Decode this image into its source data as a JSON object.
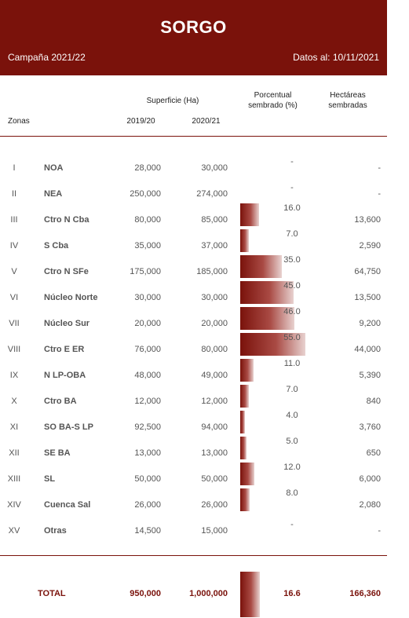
{
  "header": {
    "title": "SORGO",
    "campaign": "Campaña 2021/22",
    "date": "Datos al: 10/11/2021"
  },
  "columns": {
    "superficie": "Superficie (Ha)",
    "zonas": "Zonas",
    "y1": "2019/20",
    "y2": "2020/21",
    "pct_line1": "Porcentual",
    "pct_line2": "sembrado (%)",
    "ha_line1": "Hectáreas",
    "ha_line2": "sembradas"
  },
  "chart_data": {
    "type": "table",
    "rows": [
      {
        "roman": "I",
        "zone": "NOA",
        "y1": "28,000",
        "y2": "30,000",
        "pct": null,
        "pct_label": "-",
        "ha": "-"
      },
      {
        "roman": "II",
        "zone": "NEA",
        "y1": "250,000",
        "y2": "274,000",
        "pct": null,
        "pct_label": "-",
        "ha": "-"
      },
      {
        "roman": "III",
        "zone": "Ctro N Cba",
        "y1": "80,000",
        "y2": "85,000",
        "pct": 16.0,
        "pct_label": "16.0",
        "ha": "13,600"
      },
      {
        "roman": "IV",
        "zone": "S Cba",
        "y1": "35,000",
        "y2": "37,000",
        "pct": 7.0,
        "pct_label": "7.0",
        "ha": "2,590"
      },
      {
        "roman": "V",
        "zone": "Ctro N SFe",
        "y1": "175,000",
        "y2": "185,000",
        "pct": 35.0,
        "pct_label": "35.0",
        "ha": "64,750"
      },
      {
        "roman": "VI",
        "zone": "Núcleo Norte",
        "y1": "30,000",
        "y2": "30,000",
        "pct": 45.0,
        "pct_label": "45.0",
        "ha": "13,500"
      },
      {
        "roman": "VII",
        "zone": "Núcleo Sur",
        "y1": "20,000",
        "y2": "20,000",
        "pct": 46.0,
        "pct_label": "46.0",
        "ha": "9,200"
      },
      {
        "roman": "VIII",
        "zone": "Ctro E ER",
        "y1": "76,000",
        "y2": "80,000",
        "pct": 55.0,
        "pct_label": "55.0",
        "ha": "44,000"
      },
      {
        "roman": "IX",
        "zone": "N LP-OBA",
        "y1": "48,000",
        "y2": "49,000",
        "pct": 11.0,
        "pct_label": "11.0",
        "ha": "5,390"
      },
      {
        "roman": "X",
        "zone": "Ctro BA",
        "y1": "12,000",
        "y2": "12,000",
        "pct": 7.0,
        "pct_label": "7.0",
        "ha": "840"
      },
      {
        "roman": "XI",
        "zone": "SO BA-S LP",
        "y1": "92,500",
        "y2": "94,000",
        "pct": 4.0,
        "pct_label": "4.0",
        "ha": "3,760"
      },
      {
        "roman": "XII",
        "zone": "SE BA",
        "y1": "13,000",
        "y2": "13,000",
        "pct": 5.0,
        "pct_label": "5.0",
        "ha": "650"
      },
      {
        "roman": "XIII",
        "zone": "SL",
        "y1": "50,000",
        "y2": "50,000",
        "pct": 12.0,
        "pct_label": "12.0",
        "ha": "6,000"
      },
      {
        "roman": "XIV",
        "zone": "Cuenca Sal",
        "y1": "26,000",
        "y2": "26,000",
        "pct": 8.0,
        "pct_label": "8.0",
        "ha": "2,080"
      },
      {
        "roman": "XV",
        "zone": "Otras",
        "y1": "14,500",
        "y2": "15,000",
        "pct": null,
        "pct_label": "-",
        "ha": "-"
      }
    ],
    "total": {
      "label": "TOTAL",
      "y1": "950,000",
      "y2": "1,000,000",
      "pct": 16.6,
      "pct_label": "16.6",
      "ha": "166,360"
    }
  },
  "colors": {
    "brand": "#7a120b"
  }
}
